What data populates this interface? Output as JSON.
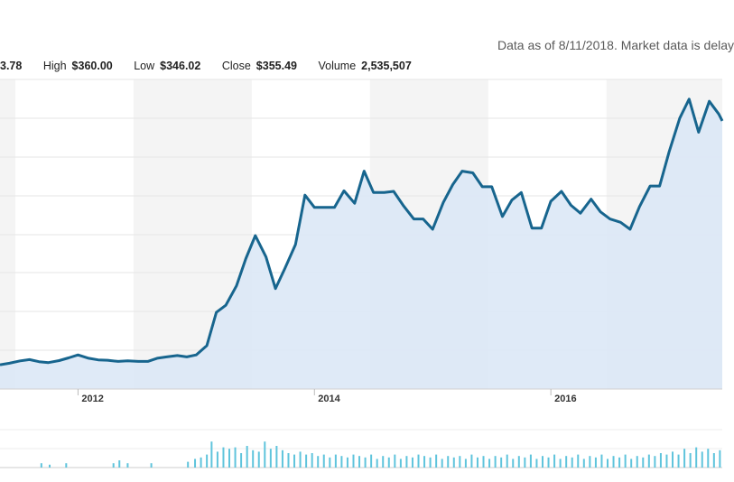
{
  "header": {
    "notice": "Data as of 8/11/2018. Market data is delay"
  },
  "ohlc": {
    "open_value": "3.78",
    "high_label": "High",
    "high_value": "$360.00",
    "low_label": "Low",
    "low_value": "$346.02",
    "close_label": "Close",
    "close_value": "$355.49",
    "volume_label": "Volume",
    "volume_value": "2,535,507"
  },
  "chart_data": {
    "type": "area",
    "x_tick_labels": [
      "2012",
      "2014",
      "2016"
    ],
    "x_range": [
      2011.34,
      2017.45
    ],
    "price": [
      [
        2011.34,
        59.6
      ],
      [
        2011.42,
        60.6
      ],
      [
        2011.51,
        62.0
      ],
      [
        2011.59,
        62.8
      ],
      [
        2011.67,
        61.5
      ],
      [
        2011.75,
        61.0
      ],
      [
        2011.84,
        62.2
      ],
      [
        2011.92,
        63.8
      ],
      [
        2012.0,
        65.6
      ],
      [
        2012.09,
        63.6
      ],
      [
        2012.17,
        62.6
      ],
      [
        2012.25,
        62.4
      ],
      [
        2012.34,
        61.7
      ],
      [
        2012.42,
        62.0
      ],
      [
        2012.51,
        61.7
      ],
      [
        2012.59,
        61.7
      ],
      [
        2012.67,
        63.6
      ],
      [
        2012.75,
        64.4
      ],
      [
        2012.84,
        65.2
      ],
      [
        2012.92,
        64.4
      ],
      [
        2013.0,
        65.6
      ],
      [
        2013.09,
        71.2
      ],
      [
        2013.17,
        91.3
      ],
      [
        2013.25,
        95.6
      ],
      [
        2013.34,
        107.3
      ],
      [
        2013.42,
        123.8
      ],
      [
        2013.5,
        137.7
      ],
      [
        2013.59,
        124.8
      ],
      [
        2013.67,
        105.7
      ],
      [
        2013.75,
        117.8
      ],
      [
        2013.84,
        132.3
      ],
      [
        2013.92,
        162.1
      ],
      [
        2014.0,
        154.7
      ],
      [
        2014.09,
        154.7
      ],
      [
        2014.17,
        154.7
      ],
      [
        2014.25,
        164.7
      ],
      [
        2014.34,
        157.2
      ],
      [
        2014.42,
        176.6
      ],
      [
        2014.5,
        163.7
      ],
      [
        2014.59,
        163.7
      ],
      [
        2014.67,
        164.4
      ],
      [
        2014.75,
        156.0
      ],
      [
        2014.84,
        147.7
      ],
      [
        2014.92,
        147.7
      ],
      [
        2015.0,
        141.5
      ],
      [
        2015.09,
        157.7
      ],
      [
        2015.17,
        168.5
      ],
      [
        2015.25,
        176.6
      ],
      [
        2015.34,
        175.6
      ],
      [
        2015.42,
        167.2
      ],
      [
        2015.5,
        167.2
      ],
      [
        2015.59,
        149.2
      ],
      [
        2015.67,
        159.1
      ],
      [
        2015.75,
        163.7
      ],
      [
        2015.84,
        142.2
      ],
      [
        2015.92,
        142.2
      ],
      [
        2016.0,
        158.4
      ],
      [
        2016.09,
        164.4
      ],
      [
        2016.17,
        156.0
      ],
      [
        2016.25,
        151.2
      ],
      [
        2016.34,
        159.7
      ],
      [
        2016.42,
        152.0
      ],
      [
        2016.5,
        147.7
      ],
      [
        2016.59,
        145.7
      ],
      [
        2016.67,
        141.5
      ],
      [
        2016.75,
        155.1
      ],
      [
        2016.84,
        167.6
      ],
      [
        2016.92,
        167.6
      ],
      [
        2017.0,
        188.2
      ],
      [
        2017.09,
        208.6
      ],
      [
        2017.17,
        220.1
      ],
      [
        2017.25,
        200.1
      ],
      [
        2017.34,
        218.8
      ],
      [
        2017.42,
        211.1
      ],
      [
        2017.45,
        207.0
      ]
    ],
    "volume": [
      [
        2011.69,
        3
      ],
      [
        2011.76,
        2
      ],
      [
        2011.9,
        3
      ],
      [
        2012.3,
        3
      ],
      [
        2012.35,
        5
      ],
      [
        2012.42,
        3
      ],
      [
        2012.62,
        3
      ],
      [
        2012.93,
        4
      ],
      [
        2012.99,
        6
      ],
      [
        2013.04,
        7
      ],
      [
        2013.09,
        9
      ],
      [
        2013.13,
        18
      ],
      [
        2013.18,
        11
      ],
      [
        2013.23,
        14
      ],
      [
        2013.28,
        13
      ],
      [
        2013.33,
        14
      ],
      [
        2013.38,
        10
      ],
      [
        2013.43,
        15
      ],
      [
        2013.48,
        12
      ],
      [
        2013.53,
        11
      ],
      [
        2013.58,
        18
      ],
      [
        2013.63,
        13
      ],
      [
        2013.68,
        15
      ],
      [
        2013.73,
        12
      ],
      [
        2013.78,
        10
      ],
      [
        2013.83,
        9
      ],
      [
        2013.88,
        11
      ],
      [
        2013.93,
        9
      ],
      [
        2013.98,
        10
      ],
      [
        2014.03,
        8
      ],
      [
        2014.08,
        9
      ],
      [
        2014.13,
        7
      ],
      [
        2014.18,
        9
      ],
      [
        2014.23,
        8
      ],
      [
        2014.28,
        7
      ],
      [
        2014.33,
        9
      ],
      [
        2014.38,
        8
      ],
      [
        2014.43,
        7
      ],
      [
        2014.48,
        9
      ],
      [
        2014.53,
        6
      ],
      [
        2014.58,
        8
      ],
      [
        2014.63,
        7
      ],
      [
        2014.68,
        9
      ],
      [
        2014.73,
        6
      ],
      [
        2014.78,
        8
      ],
      [
        2014.83,
        7
      ],
      [
        2014.88,
        9
      ],
      [
        2014.93,
        8
      ],
      [
        2014.98,
        7
      ],
      [
        2015.03,
        9
      ],
      [
        2015.08,
        6
      ],
      [
        2015.13,
        8
      ],
      [
        2015.18,
        7
      ],
      [
        2015.23,
        8
      ],
      [
        2015.28,
        6
      ],
      [
        2015.33,
        9
      ],
      [
        2015.38,
        7
      ],
      [
        2015.43,
        8
      ],
      [
        2015.48,
        6
      ],
      [
        2015.53,
        8
      ],
      [
        2015.58,
        7
      ],
      [
        2015.63,
        9
      ],
      [
        2015.68,
        6
      ],
      [
        2015.73,
        8
      ],
      [
        2015.78,
        7
      ],
      [
        2015.83,
        9
      ],
      [
        2015.88,
        6
      ],
      [
        2015.93,
        8
      ],
      [
        2015.98,
        7
      ],
      [
        2016.03,
        9
      ],
      [
        2016.08,
        6
      ],
      [
        2016.13,
        8
      ],
      [
        2016.18,
        7
      ],
      [
        2016.23,
        9
      ],
      [
        2016.28,
        6
      ],
      [
        2016.33,
        8
      ],
      [
        2016.38,
        7
      ],
      [
        2016.43,
        9
      ],
      [
        2016.48,
        6
      ],
      [
        2016.53,
        8
      ],
      [
        2016.58,
        7
      ],
      [
        2016.63,
        9
      ],
      [
        2016.68,
        6
      ],
      [
        2016.73,
        8
      ],
      [
        2016.78,
        7
      ],
      [
        2016.83,
        9
      ],
      [
        2016.88,
        8
      ],
      [
        2016.93,
        10
      ],
      [
        2016.98,
        9
      ],
      [
        2017.03,
        11
      ],
      [
        2017.08,
        9
      ],
      [
        2017.13,
        13
      ],
      [
        2017.18,
        10
      ],
      [
        2017.23,
        14
      ],
      [
        2017.28,
        11
      ],
      [
        2017.33,
        13
      ],
      [
        2017.38,
        10
      ],
      [
        2017.43,
        12
      ]
    ],
    "volume_max": 20,
    "grid": "horizontal",
    "alternating_year_bands": true,
    "colors": {
      "line": "#17658e",
      "area_fill": "#dce8f6",
      "volume_bar": "#5fc4dc",
      "band_shade": "#f4f4f4",
      "grid": "#e6e6e6"
    }
  }
}
